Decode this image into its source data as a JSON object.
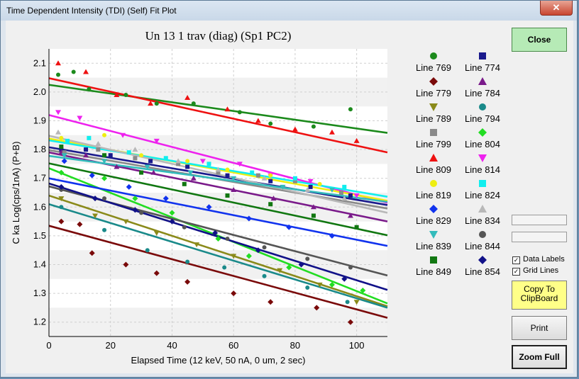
{
  "window": {
    "title": "Time Dependent Intensity (TDI) (Self) Fit Plot",
    "close_glyph": "✕"
  },
  "buttons": {
    "close": "Close",
    "copy_line1": "Copy To",
    "copy_line2": "ClipBoard",
    "print": "Print",
    "zoom": "Zoom Full"
  },
  "options": [
    {
      "label": "Data Labels",
      "checked": true
    },
    {
      "label": "Grid Lines",
      "checked": true
    }
  ],
  "chart_data": {
    "type": "scatter",
    "title": "Un   13  1 trav (diag) (Sp1 PC2)",
    "xlabel": "Elapsed Time (12 keV, 50 nA, 0 um, 2 sec)",
    "ylabel": "C ka Log(cps/1nA) (P+B)",
    "xlim": [
      0,
      110
    ],
    "ylim": [
      1.15,
      2.15
    ],
    "x_ticks": [
      0,
      20,
      40,
      60,
      80,
      100
    ],
    "y_ticks": [
      1.2,
      1.3,
      1.4,
      1.5,
      1.6,
      1.7,
      1.8,
      1.9,
      2.0,
      2.1
    ],
    "grid": true,
    "legend_position": "right",
    "series": [
      {
        "name": "Line 769",
        "color": "#1c8a1c",
        "marker": "circle",
        "fit": [
          2.025,
          1.858
        ],
        "points": [
          [
            3,
            2.06
          ],
          [
            8,
            2.07
          ],
          [
            13,
            2.01
          ],
          [
            25,
            1.99
          ],
          [
            35,
            1.96
          ],
          [
            47,
            1.96
          ],
          [
            62,
            1.93
          ],
          [
            72,
            1.89
          ],
          [
            86,
            1.88
          ],
          [
            98,
            1.94
          ]
        ]
      },
      {
        "name": "Line 774",
        "color": "#1a1a8c",
        "marker": "square",
        "fit": [
          1.808,
          1.607
        ],
        "points": [
          [
            4,
            1.8
          ],
          [
            12,
            1.8
          ],
          [
            20,
            1.78
          ],
          [
            33,
            1.76
          ],
          [
            45,
            1.74
          ],
          [
            58,
            1.71
          ],
          [
            72,
            1.69
          ],
          [
            85,
            1.67
          ],
          [
            98,
            1.64
          ]
        ]
      },
      {
        "name": "Line 779",
        "color": "#7a0a0a",
        "marker": "diamond",
        "fit": [
          1.535,
          1.215
        ],
        "points": [
          [
            4,
            1.55
          ],
          [
            10,
            1.54
          ],
          [
            14,
            1.44
          ],
          [
            25,
            1.4
          ],
          [
            35,
            1.37
          ],
          [
            45,
            1.34
          ],
          [
            60,
            1.3
          ],
          [
            72,
            1.27
          ],
          [
            87,
            1.25
          ],
          [
            98,
            1.2
          ]
        ]
      },
      {
        "name": "Line 784",
        "color": "#7a1a8a",
        "marker": "triangle",
        "fit": [
          1.79,
          1.55
        ],
        "points": [
          [
            4,
            1.79
          ],
          [
            12,
            1.78
          ],
          [
            22,
            1.74
          ],
          [
            34,
            1.72
          ],
          [
            47,
            1.7
          ],
          [
            60,
            1.66
          ],
          [
            73,
            1.63
          ],
          [
            86,
            1.6
          ],
          [
            98,
            1.57
          ]
        ]
      },
      {
        "name": "Line 789",
        "color": "#8a8a1a",
        "marker": "triangle-down",
        "fit": [
          1.64,
          1.255
        ],
        "points": [
          [
            4,
            1.63
          ],
          [
            15,
            1.57
          ],
          [
            25,
            1.55
          ],
          [
            35,
            1.51
          ],
          [
            48,
            1.47
          ],
          [
            60,
            1.43
          ],
          [
            75,
            1.38
          ],
          [
            88,
            1.33
          ],
          [
            100,
            1.27
          ]
        ]
      },
      {
        "name": "Line 794",
        "color": "#1a8a8a",
        "marker": "circle",
        "fit": [
          1.61,
          1.25
        ],
        "points": [
          [
            4,
            1.6
          ],
          [
            18,
            1.52
          ],
          [
            32,
            1.45
          ],
          [
            45,
            1.41
          ],
          [
            57,
            1.39
          ],
          [
            70,
            1.36
          ],
          [
            84,
            1.32
          ],
          [
            97,
            1.27
          ]
        ]
      },
      {
        "name": "Line 799",
        "color": "#8a8a8a",
        "marker": "square",
        "fit": [
          1.798,
          1.595
        ],
        "points": [
          [
            5,
            1.79
          ],
          [
            16,
            1.8
          ],
          [
            28,
            1.77
          ],
          [
            42,
            1.75
          ],
          [
            55,
            1.72
          ],
          [
            68,
            1.71
          ],
          [
            80,
            1.69
          ],
          [
            95,
            1.65
          ]
        ]
      },
      {
        "name": "Line 804",
        "color": "#22dd22",
        "marker": "diamond",
        "fit": [
          1.735,
          1.265
        ],
        "points": [
          [
            4,
            1.72
          ],
          [
            18,
            1.7
          ],
          [
            28,
            1.63
          ],
          [
            40,
            1.58
          ],
          [
            55,
            1.49
          ],
          [
            65,
            1.43
          ],
          [
            78,
            1.39
          ],
          [
            92,
            1.33
          ],
          [
            102,
            1.31
          ]
        ]
      },
      {
        "name": "Line 809",
        "color": "#ee1111",
        "marker": "triangle",
        "fit": [
          2.048,
          1.79
        ],
        "points": [
          [
            3,
            2.1
          ],
          [
            12,
            2.07
          ],
          [
            22,
            1.99
          ],
          [
            33,
            1.96
          ],
          [
            45,
            1.98
          ],
          [
            58,
            1.94
          ],
          [
            68,
            1.9
          ],
          [
            80,
            1.87
          ],
          [
            92,
            1.86
          ],
          [
            100,
            1.83
          ]
        ]
      },
      {
        "name": "Line 814",
        "color": "#ee22ee",
        "marker": "triangle-down",
        "fit": [
          1.92,
          1.615
        ],
        "points": [
          [
            3,
            1.93
          ],
          [
            10,
            1.91
          ],
          [
            24,
            1.85
          ],
          [
            35,
            1.83
          ],
          [
            50,
            1.76
          ],
          [
            62,
            1.75
          ],
          [
            72,
            1.71
          ],
          [
            85,
            1.69
          ],
          [
            100,
            1.64
          ]
        ]
      },
      {
        "name": "Line 819",
        "color": "#eeee11",
        "marker": "circle",
        "fit": [
          1.838,
          1.622
        ],
        "points": [
          [
            4,
            1.84
          ],
          [
            18,
            1.85
          ],
          [
            30,
            1.78
          ],
          [
            45,
            1.76
          ],
          [
            58,
            1.73
          ],
          [
            72,
            1.71
          ],
          [
            88,
            1.68
          ]
        ]
      },
      {
        "name": "Line 824",
        "color": "#11eeee",
        "marker": "square",
        "fit": [
          1.832,
          1.636
        ],
        "points": [
          [
            6,
            1.83
          ],
          [
            13,
            1.84
          ],
          [
            26,
            1.79
          ],
          [
            38,
            1.77
          ],
          [
            52,
            1.75
          ],
          [
            66,
            1.72
          ],
          [
            80,
            1.7
          ],
          [
            96,
            1.67
          ]
        ]
      },
      {
        "name": "Line 829",
        "color": "#1133ee",
        "marker": "diamond",
        "fit": [
          1.7,
          1.465
        ],
        "points": [
          [
            5,
            1.76
          ],
          [
            14,
            1.71
          ],
          [
            26,
            1.67
          ],
          [
            38,
            1.63
          ],
          [
            52,
            1.6
          ],
          [
            65,
            1.56
          ],
          [
            78,
            1.53
          ],
          [
            92,
            1.5
          ]
        ]
      },
      {
        "name": "Line 834",
        "color": "#b8b8b8",
        "marker": "triangle",
        "fit": [
          1.848,
          1.58
        ],
        "points": [
          [
            3,
            1.86
          ],
          [
            16,
            1.82
          ],
          [
            28,
            1.8
          ],
          [
            42,
            1.76
          ],
          [
            55,
            1.73
          ],
          [
            70,
            1.7
          ],
          [
            84,
            1.66
          ],
          [
            96,
            1.63
          ]
        ]
      },
      {
        "name": "Line 839",
        "color": "#33bbbb",
        "marker": "triangle-down",
        "fit": [
          1.778,
          1.618
        ],
        "points": [
          [
            5,
            1.78
          ],
          [
            18,
            1.76
          ],
          [
            32,
            1.74
          ],
          [
            46,
            1.72
          ],
          [
            60,
            1.7
          ],
          [
            76,
            1.67
          ],
          [
            92,
            1.66
          ]
        ]
      },
      {
        "name": "Line 844",
        "color": "#555555",
        "marker": "circle",
        "fit": [
          1.672,
          1.362
        ],
        "points": [
          [
            4,
            1.66
          ],
          [
            18,
            1.63
          ],
          [
            30,
            1.58
          ],
          [
            44,
            1.53
          ],
          [
            58,
            1.49
          ],
          [
            70,
            1.46
          ],
          [
            84,
            1.42
          ],
          [
            98,
            1.39
          ]
        ]
      },
      {
        "name": "Line 849",
        "color": "#117711",
        "marker": "square",
        "fit": [
          1.752,
          1.502
        ],
        "points": [
          [
            4,
            1.81
          ],
          [
            18,
            1.78
          ],
          [
            30,
            1.72
          ],
          [
            44,
            1.68
          ],
          [
            58,
            1.64
          ],
          [
            72,
            1.61
          ],
          [
            86,
            1.57
          ],
          [
            100,
            1.53
          ]
        ]
      },
      {
        "name": "Line 854",
        "color": "#111188",
        "marker": "diamond",
        "fit": [
          1.682,
          1.312
        ],
        "points": [
          [
            4,
            1.67
          ],
          [
            15,
            1.63
          ],
          [
            28,
            1.59
          ],
          [
            40,
            1.55
          ],
          [
            54,
            1.51
          ],
          [
            68,
            1.45
          ],
          [
            82,
            1.4
          ],
          [
            96,
            1.35
          ]
        ]
      }
    ]
  }
}
